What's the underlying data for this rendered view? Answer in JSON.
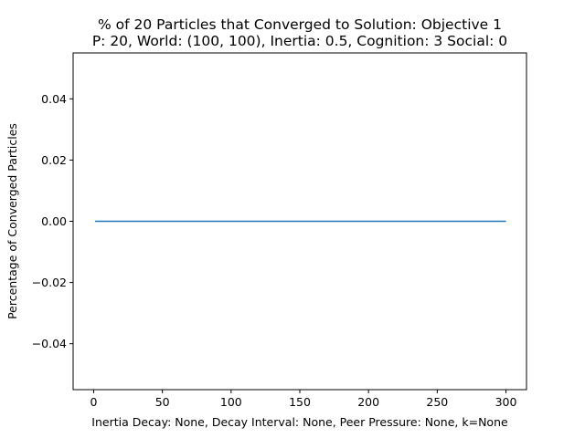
{
  "chart_data": {
    "type": "line",
    "title_line1": "% of 20 Particles that Converged to Solution: Objective 1",
    "title_line2": "P: 20, World: (100, 100), Inertia: 0.5, Cognition: 3 Social: 0",
    "xlabel": "Inertia Decay: None, Decay Interval: None, Peer Pressure: None, k=None",
    "ylabel": "Percentage of Converged Particles",
    "xlim": [
      -14.95,
      314.95
    ],
    "ylim": [
      -0.055,
      0.055
    ],
    "x_ticks": [
      0,
      50,
      100,
      150,
      200,
      250,
      300
    ],
    "x_tick_labels": [
      "0",
      "50",
      "100",
      "150",
      "200",
      "250",
      "300"
    ],
    "y_ticks": [
      -0.04,
      -0.02,
      0.0,
      0.02,
      0.04
    ],
    "y_tick_labels": [
      "−0.04",
      "−0.02",
      "0.00",
      "0.02",
      "0.04"
    ],
    "grid": false,
    "series": [
      {
        "color": "#1f77b4",
        "x": [
          1,
          300
        ],
        "y": [
          0,
          0
        ]
      }
    ]
  }
}
